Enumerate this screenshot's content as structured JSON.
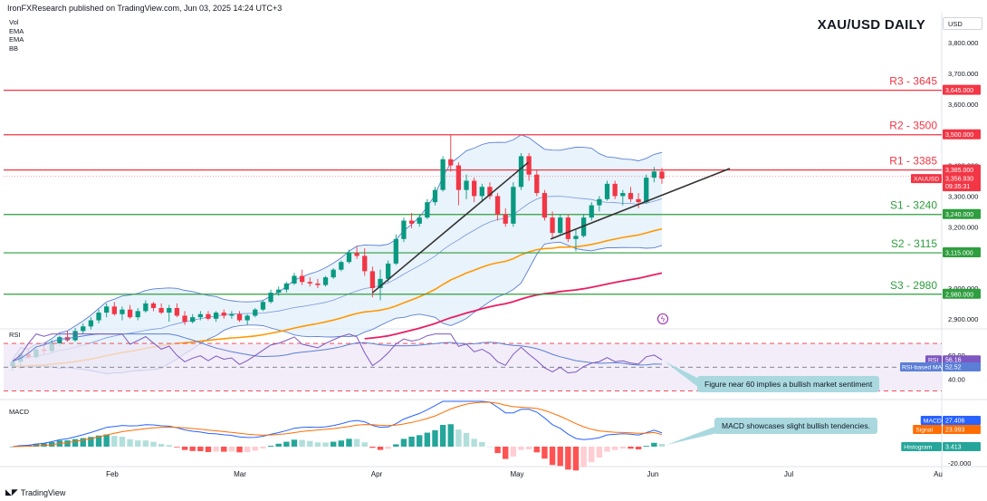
{
  "header": {
    "publisher_line": "IronFXResearch published on TradingView.com, Jun 03, 2025 14:24 UTC+3",
    "indicator_labels": [
      "Vol",
      "EMA",
      "EMA",
      "BB"
    ],
    "title": "XAU/USD DAILY",
    "currency": "USD"
  },
  "footer": {
    "brand": "TradingView"
  },
  "price_axis": {
    "ticks": [
      "3,800.000",
      "3,700.000",
      "3,600.000",
      "3,400.000",
      "3,300.000",
      "3,200.000",
      "3,000.000",
      "2,900.000"
    ],
    "tick_values": [
      3800,
      3700,
      3600,
      3400,
      3300,
      3200,
      3000,
      2900
    ]
  },
  "level_tags": [
    {
      "value": 3645,
      "text": "3,645.000",
      "color": "#f23645"
    },
    {
      "value": 3500,
      "text": "3,500.000",
      "color": "#f23645"
    },
    {
      "value": 3385,
      "text": "3,385.000",
      "color": "#f23645"
    },
    {
      "value": 3240,
      "text": "3,240.000",
      "color": "#2e9e3e"
    },
    {
      "value": 3115,
      "text": "3,115.000",
      "color": "#2e9e3e"
    },
    {
      "value": 2980,
      "text": "2,980.000",
      "color": "#2e9e3e"
    }
  ],
  "levels": [
    {
      "label": "R3 - 3645",
      "value": 3645,
      "color": "#f23645"
    },
    {
      "label": "R2 - 3500",
      "value": 3500,
      "color": "#f23645"
    },
    {
      "label": "R1 - 3385",
      "value": 3385,
      "color": "#f23645"
    },
    {
      "label": "S1 - 3240",
      "value": 3240,
      "color": "#2e9e3e"
    },
    {
      "label": "S2 - 3115",
      "value": 3115,
      "color": "#2e9e3e"
    },
    {
      "label": "S3 - 2980",
      "value": 2980,
      "color": "#2e9e3e"
    }
  ],
  "current_price": {
    "symbol": "XAUUSD",
    "price": "3,356.930",
    "countdown": "09:35:31",
    "value": 3356.93
  },
  "rsi": {
    "label": "RSI",
    "value_label": "RSI",
    "value": "56.16",
    "ma_label": "RSI-based MA",
    "ma_value": "52.52",
    "ticks": [
      "60.00",
      "40.00"
    ],
    "callout": "Figure near 60 implies a bullish market sentiment"
  },
  "macd": {
    "label": "MACD",
    "macd_label": "MACD",
    "macd_value": "27.406",
    "signal_label": "Signal",
    "signal_value": "23.993",
    "hist_label": "Histogram",
    "hist_value": "3.413",
    "ticks": [
      "-20.000"
    ],
    "callout": "MACD showcases slight bullish tendencies."
  },
  "time_axis": [
    "Feb",
    "Mar",
    "Apr",
    "May",
    "Jun",
    "Jul",
    "Au"
  ],
  "colors": {
    "bull": "#089981",
    "bear": "#f23645",
    "bb": "#5b7fd6",
    "bb_fill": "#dfeefa",
    "ema_fast": "#ff9800",
    "ema_slow": "#e91e63",
    "trend": "#333333",
    "rsi": "#7e57c2",
    "rsi_bg": "#ede7f6",
    "macd": "#2962ff",
    "signal": "#ff6d00"
  },
  "chart_data": {
    "type": "candlestick",
    "title": "XAU/USD DAILY",
    "symbol": "XAUUSD",
    "timeframe": "Daily",
    "x_range": [
      "Jan 2025",
      "Jun 03, 2025"
    ],
    "ylim": [
      2870,
      3830
    ],
    "ohlc_approx": [
      [
        2745,
        2770,
        2730,
        2760
      ],
      [
        2760,
        2790,
        2750,
        2785
      ],
      [
        2785,
        2800,
        2770,
        2775
      ],
      [
        2775,
        2810,
        2770,
        2800
      ],
      [
        2800,
        2815,
        2785,
        2795
      ],
      [
        2795,
        2830,
        2790,
        2820
      ],
      [
        2820,
        2845,
        2810,
        2840
      ],
      [
        2840,
        2860,
        2825,
        2830
      ],
      [
        2830,
        2870,
        2825,
        2860
      ],
      [
        2860,
        2885,
        2850,
        2875
      ],
      [
        2875,
        2905,
        2865,
        2895
      ],
      [
        2895,
        2930,
        2885,
        2920
      ],
      [
        2920,
        2950,
        2905,
        2940
      ],
      [
        2940,
        2955,
        2910,
        2915
      ],
      [
        2915,
        2940,
        2895,
        2930
      ],
      [
        2930,
        2945,
        2900,
        2905
      ],
      [
        2905,
        2935,
        2895,
        2925
      ],
      [
        2925,
        2960,
        2920,
        2950
      ],
      [
        2950,
        2955,
        2925,
        2935
      ],
      [
        2935,
        2950,
        2915,
        2920
      ],
      [
        2920,
        2945,
        2890,
        2935
      ],
      [
        2935,
        2950,
        2905,
        2910
      ],
      [
        2910,
        2925,
        2880,
        2890
      ],
      [
        2890,
        2915,
        2885,
        2905
      ],
      [
        2905,
        2925,
        2895,
        2915
      ],
      [
        2915,
        2925,
        2895,
        2900
      ],
      [
        2900,
        2925,
        2890,
        2920
      ],
      [
        2920,
        2930,
        2900,
        2910
      ],
      [
        2910,
        2925,
        2900,
        2915
      ],
      [
        2915,
        2925,
        2890,
        2895
      ],
      [
        2895,
        2915,
        2880,
        2910
      ],
      [
        2910,
        2935,
        2905,
        2930
      ],
      [
        2930,
        2960,
        2925,
        2955
      ],
      [
        2955,
        2995,
        2950,
        2985
      ],
      [
        2985,
        3005,
        2975,
        2995
      ],
      [
        2995,
        3020,
        2985,
        3015
      ],
      [
        3015,
        3050,
        3010,
        3040
      ],
      [
        3040,
        3060,
        3010,
        3020
      ],
      [
        3020,
        3035,
        3005,
        3015
      ],
      [
        3015,
        3030,
        3000,
        3010
      ],
      [
        3010,
        3040,
        3005,
        3035
      ],
      [
        3035,
        3065,
        3030,
        3060
      ],
      [
        3060,
        3090,
        3055,
        3085
      ],
      [
        3085,
        3125,
        3080,
        3115
      ],
      [
        3115,
        3135,
        3095,
        3105
      ],
      [
        3105,
        3130,
        3040,
        3055
      ],
      [
        3055,
        3070,
        2970,
        3000
      ],
      [
        3000,
        3060,
        2960,
        3030
      ],
      [
        3030,
        3090,
        3020,
        3080
      ],
      [
        3080,
        3175,
        3075,
        3160
      ],
      [
        3160,
        3230,
        3150,
        3220
      ],
      [
        3220,
        3245,
        3195,
        3210
      ],
      [
        3210,
        3240,
        3200,
        3230
      ],
      [
        3230,
        3290,
        3225,
        3280
      ],
      [
        3280,
        3330,
        3270,
        3320
      ],
      [
        3320,
        3430,
        3315,
        3420
      ],
      [
        3420,
        3500,
        3380,
        3400
      ],
      [
        3400,
        3410,
        3270,
        3320
      ],
      [
        3320,
        3370,
        3290,
        3350
      ],
      [
        3350,
        3360,
        3280,
        3300
      ],
      [
        3300,
        3340,
        3280,
        3330
      ],
      [
        3330,
        3345,
        3290,
        3300
      ],
      [
        3300,
        3310,
        3220,
        3240
      ],
      [
        3240,
        3260,
        3200,
        3210
      ],
      [
        3210,
        3345,
        3200,
        3330
      ],
      [
        3330,
        3440,
        3320,
        3430
      ],
      [
        3430,
        3440,
        3350,
        3370
      ],
      [
        3370,
        3385,
        3300,
        3310
      ],
      [
        3310,
        3320,
        3220,
        3230
      ],
      [
        3230,
        3250,
        3160,
        3180
      ],
      [
        3180,
        3240,
        3175,
        3230
      ],
      [
        3230,
        3240,
        3150,
        3160
      ],
      [
        3160,
        3190,
        3120,
        3170
      ],
      [
        3170,
        3240,
        3165,
        3230
      ],
      [
        3230,
        3280,
        3220,
        3270
      ],
      [
        3270,
        3300,
        3250,
        3290
      ],
      [
        3290,
        3350,
        3285,
        3340
      ],
      [
        3340,
        3350,
        3290,
        3300
      ],
      [
        3300,
        3320,
        3270,
        3310
      ],
      [
        3310,
        3330,
        3280,
        3290
      ],
      [
        3290,
        3310,
        3260,
        3280
      ],
      [
        3280,
        3370,
        3275,
        3360
      ],
      [
        3360,
        3395,
        3345,
        3380
      ],
      [
        3380,
        3392,
        3340,
        3357
      ]
    ],
    "indicators": [
      "Vol",
      "EMA",
      "EMA",
      "BB",
      "RSI",
      "MACD"
    ],
    "horizontal_levels": [
      3645,
      3500,
      3385,
      3240,
      3115,
      2980
    ],
    "rsi_last": 56.16,
    "rsi_ma_last": 52.52,
    "macd_last": 27.406,
    "signal_last": 23.993,
    "histogram_last": 3.413
  }
}
